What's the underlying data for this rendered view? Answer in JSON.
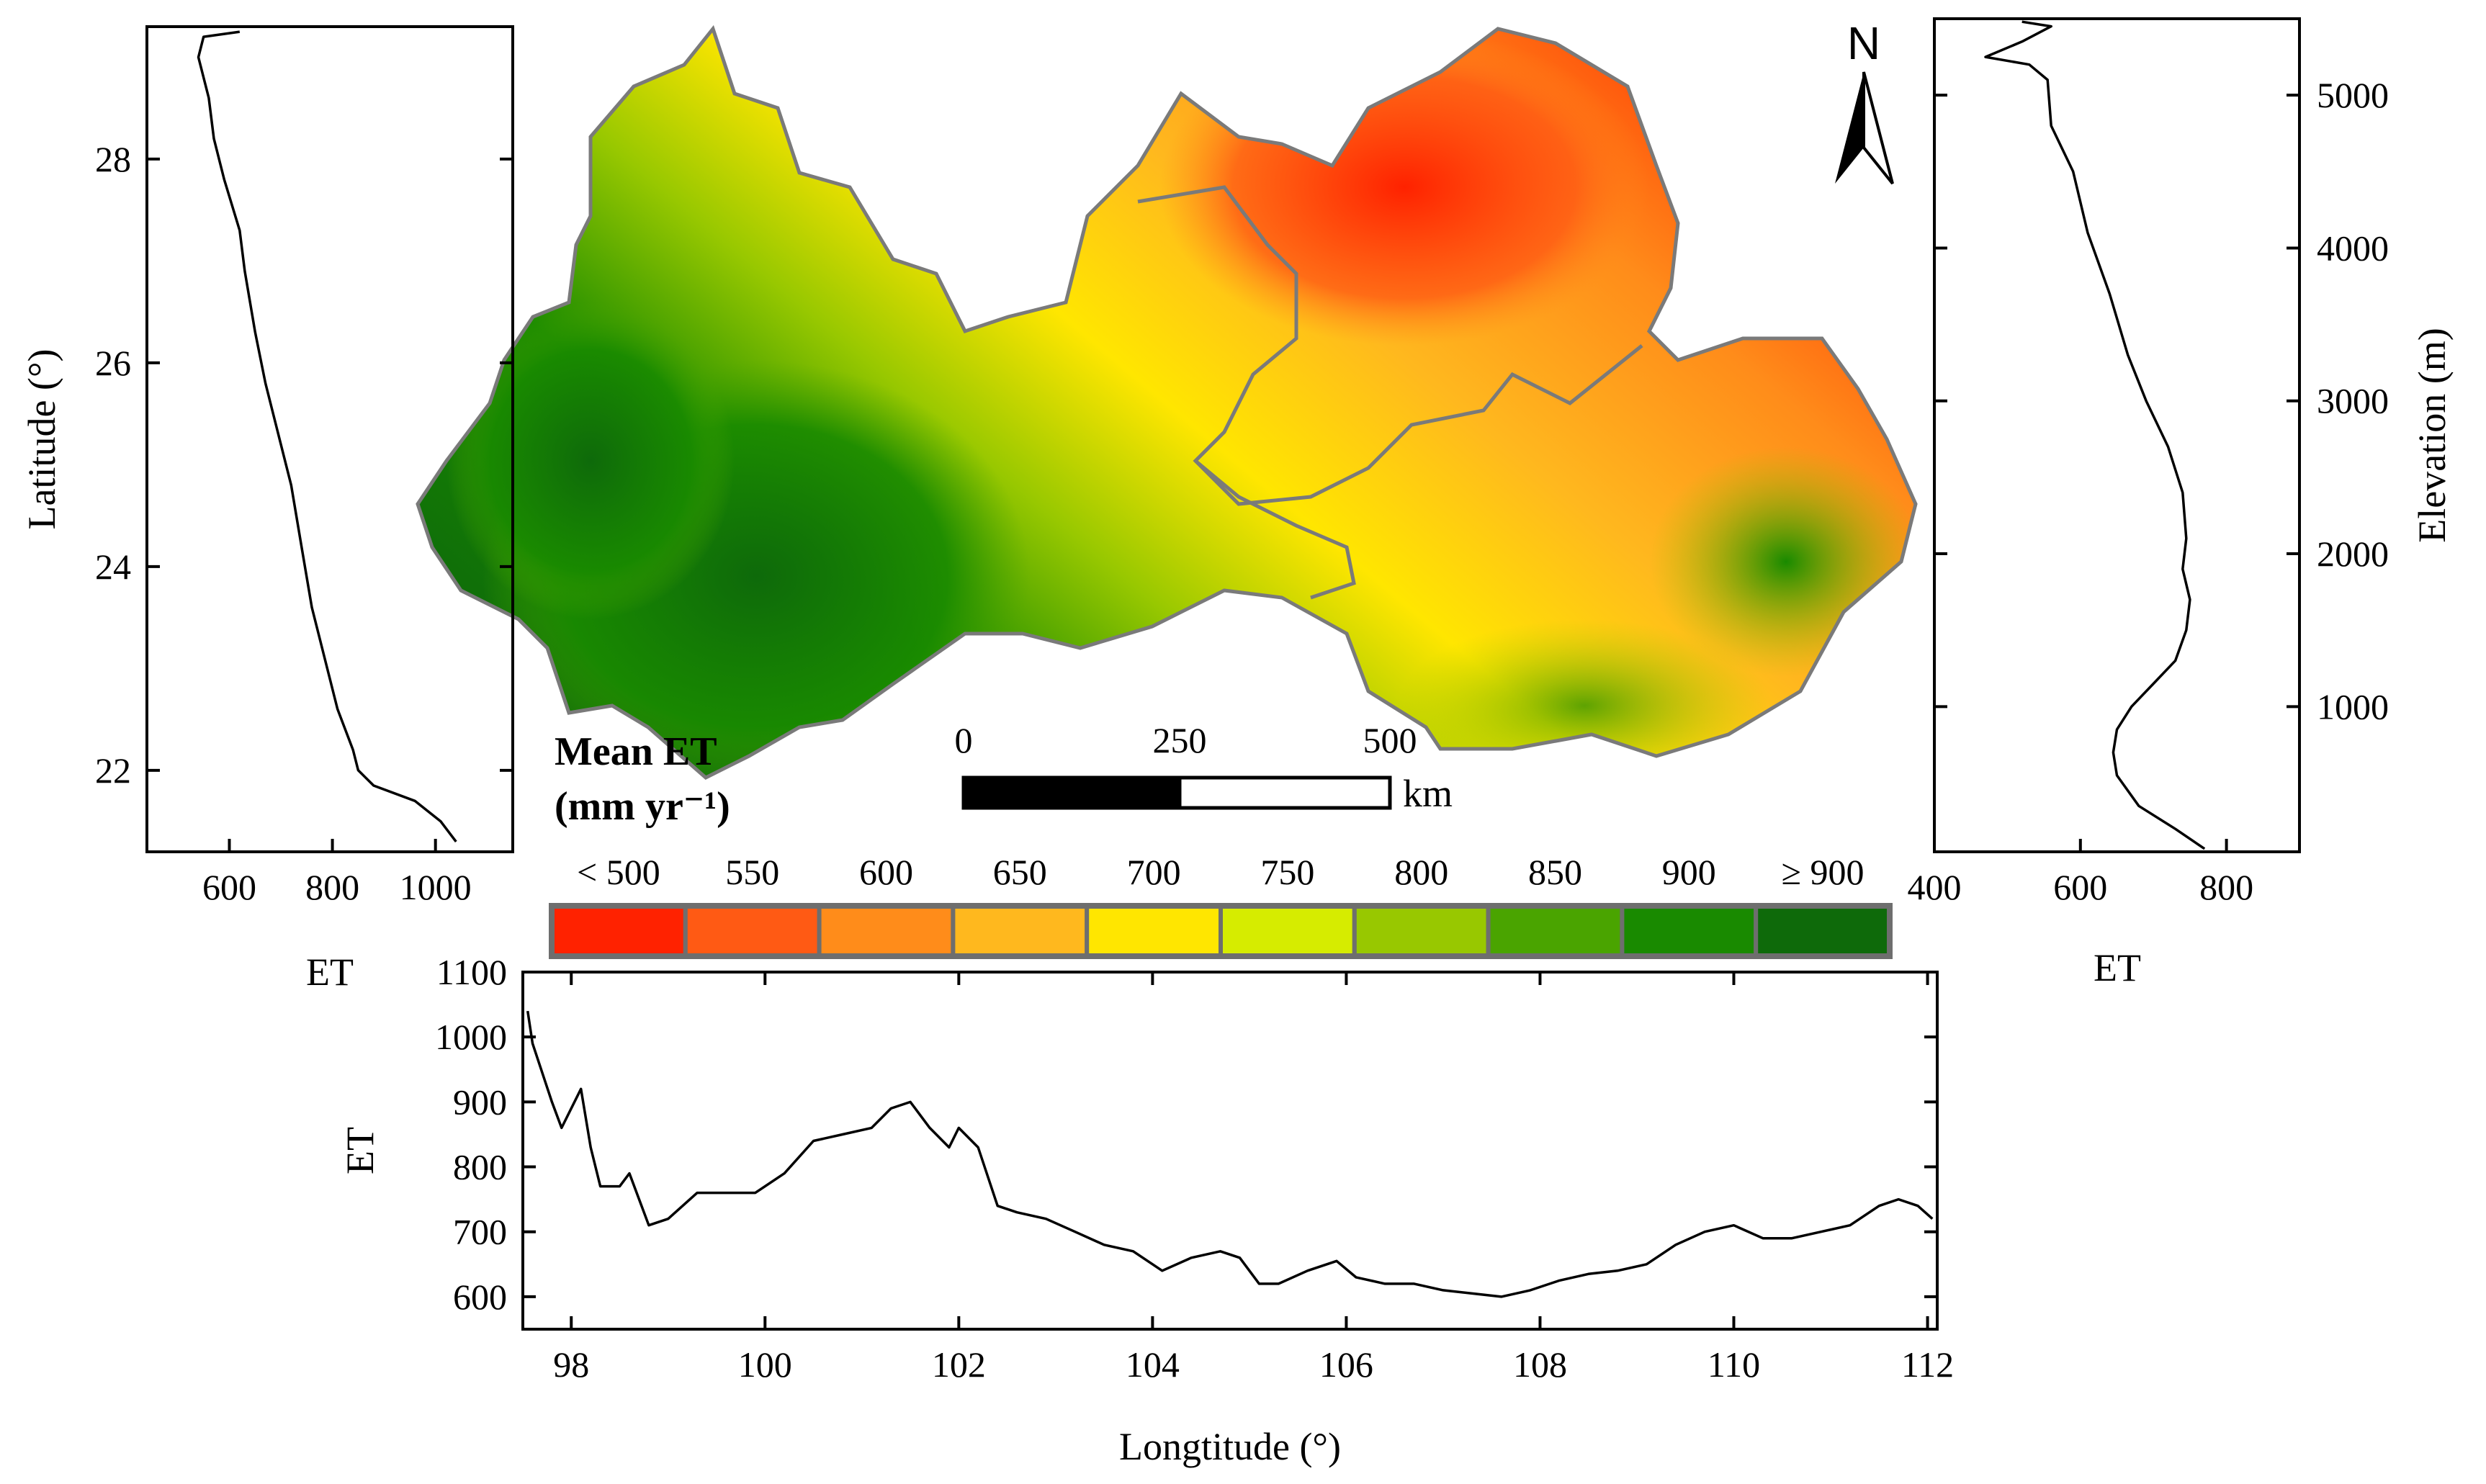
{
  "figure": {
    "north_label": "N",
    "legend": {
      "title_line1": "Mean ET",
      "title_line2": "(mm yr⁻¹)",
      "classes": [
        "< 500",
        "550",
        "600",
        "650",
        "700",
        "750",
        "800",
        "850",
        "900",
        "≥ 900"
      ],
      "colors": [
        "#ff2200",
        "#ff5a14",
        "#ff8c1a",
        "#ffb81e",
        "#ffe600",
        "#d6ec00",
        "#98c800",
        "#4aa400",
        "#198a00",
        "#0e6a0a"
      ]
    },
    "scale_bar": {
      "labels": [
        "0",
        "250",
        "500"
      ],
      "unit": "km"
    }
  },
  "chart_data": [
    {
      "id": "latitude_profile",
      "type": "line",
      "xlabel": "",
      "ylabel": "Latitude (°)",
      "xlim": [
        440,
        1150
      ],
      "ylim": [
        21.2,
        29.3
      ],
      "xticks": [
        600,
        800,
        1000
      ],
      "yticks": [
        22,
        24,
        26,
        28
      ],
      "x_tick_labels": [
        "600",
        "800",
        "1000"
      ],
      "y_tick_labels": [
        "22",
        "24",
        "26",
        "28"
      ],
      "series": [
        {
          "name": "ET",
          "points": [
            [
              1040,
              21.3
            ],
            [
              1010,
              21.5
            ],
            [
              960,
              21.7
            ],
            [
              880,
              21.85
            ],
            [
              850,
              22.0
            ],
            [
              840,
              22.2
            ],
            [
              810,
              22.6
            ],
            [
              790,
              23.0
            ],
            [
              760,
              23.6
            ],
            [
              740,
              24.2
            ],
            [
              720,
              24.8
            ],
            [
              700,
              25.2
            ],
            [
              670,
              25.8
            ],
            [
              650,
              26.3
            ],
            [
              630,
              26.9
            ],
            [
              620,
              27.3
            ],
            [
              590,
              27.8
            ],
            [
              570,
              28.2
            ],
            [
              560,
              28.6
            ],
            [
              540,
              29.0
            ],
            [
              550,
              29.2
            ],
            [
              620,
              29.25
            ]
          ]
        }
      ]
    },
    {
      "id": "elevation_profile",
      "type": "line",
      "xlabel": "ET",
      "ylabel": "Elevation (m)",
      "xlim": [
        400,
        900
      ],
      "ylim": [
        50,
        5500
      ],
      "xticks": [
        400,
        600,
        800
      ],
      "yticks": [
        1000,
        2000,
        3000,
        4000,
        5000
      ],
      "x_tick_labels": [
        "400",
        "600",
        "800"
      ],
      "y_tick_labels": [
        "1000",
        "2000",
        "3000",
        "4000",
        "5000"
      ],
      "series": [
        {
          "name": "ET",
          "points": [
            [
              770,
              70
            ],
            [
              730,
              200
            ],
            [
              680,
              350
            ],
            [
              650,
              550
            ],
            [
              645,
              700
            ],
            [
              650,
              850
            ],
            [
              670,
              1000
            ],
            [
              700,
              1150
            ],
            [
              730,
              1300
            ],
            [
              745,
              1500
            ],
            [
              750,
              1700
            ],
            [
              740,
              1900
            ],
            [
              745,
              2100
            ],
            [
              740,
              2400
            ],
            [
              720,
              2700
            ],
            [
              690,
              3000
            ],
            [
              665,
              3300
            ],
            [
              640,
              3700
            ],
            [
              610,
              4100
            ],
            [
              590,
              4500
            ],
            [
              560,
              4800
            ],
            [
              555,
              5100
            ],
            [
              530,
              5200
            ],
            [
              470,
              5250
            ],
            [
              520,
              5350
            ],
            [
              560,
              5450
            ],
            [
              520,
              5480
            ]
          ]
        }
      ]
    },
    {
      "id": "longitude_profile",
      "type": "line",
      "xlabel": "Longtitude (°)",
      "ylabel": "ET",
      "xlim": [
        97.5,
        112.1
      ],
      "ylim": [
        550,
        1100
      ],
      "xticks": [
        98,
        100,
        102,
        104,
        106,
        108,
        110,
        112
      ],
      "yticks": [
        600,
        700,
        800,
        900,
        1000,
        1100
      ],
      "x_tick_labels": [
        "98",
        "100",
        "102",
        "104",
        "106",
        "108",
        "110",
        "112"
      ],
      "y_tick_labels": [
        "600",
        "700",
        "800",
        "900",
        "1000",
        "1100"
      ],
      "series": [
        {
          "name": "ET",
          "points": [
            [
              97.55,
              1040
            ],
            [
              97.6,
              990
            ],
            [
              97.8,
              900
            ],
            [
              97.9,
              860
            ],
            [
              98.1,
              920
            ],
            [
              98.2,
              830
            ],
            [
              98.3,
              770
            ],
            [
              98.5,
              770
            ],
            [
              98.6,
              790
            ],
            [
              98.8,
              710
            ],
            [
              99.0,
              720
            ],
            [
              99.3,
              760
            ],
            [
              99.6,
              760
            ],
            [
              99.9,
              760
            ],
            [
              100.2,
              790
            ],
            [
              100.5,
              840
            ],
            [
              100.8,
              850
            ],
            [
              101.1,
              860
            ],
            [
              101.3,
              890
            ],
            [
              101.5,
              900
            ],
            [
              101.7,
              860
            ],
            [
              101.9,
              830
            ],
            [
              102.0,
              860
            ],
            [
              102.2,
              830
            ],
            [
              102.4,
              740
            ],
            [
              102.6,
              730
            ],
            [
              102.9,
              720
            ],
            [
              103.2,
              700
            ],
            [
              103.5,
              680
            ],
            [
              103.8,
              670
            ],
            [
              104.1,
              640
            ],
            [
              104.4,
              660
            ],
            [
              104.7,
              670
            ],
            [
              104.9,
              660
            ],
            [
              105.1,
              620
            ],
            [
              105.3,
              620
            ],
            [
              105.6,
              640
            ],
            [
              105.9,
              655
            ],
            [
              106.1,
              630
            ],
            [
              106.4,
              620
            ],
            [
              106.7,
              620
            ],
            [
              107.0,
              610
            ],
            [
              107.3,
              605
            ],
            [
              107.6,
              600
            ],
            [
              107.9,
              610
            ],
            [
              108.2,
              625
            ],
            [
              108.5,
              635
            ],
            [
              108.8,
              640
            ],
            [
              109.1,
              650
            ],
            [
              109.4,
              680
            ],
            [
              109.7,
              700
            ],
            [
              110.0,
              710
            ],
            [
              110.3,
              690
            ],
            [
              110.6,
              690
            ],
            [
              110.9,
              700
            ],
            [
              111.2,
              710
            ],
            [
              111.5,
              740
            ],
            [
              111.7,
              750
            ],
            [
              111.9,
              740
            ],
            [
              112.05,
              720
            ]
          ]
        }
      ]
    }
  ]
}
